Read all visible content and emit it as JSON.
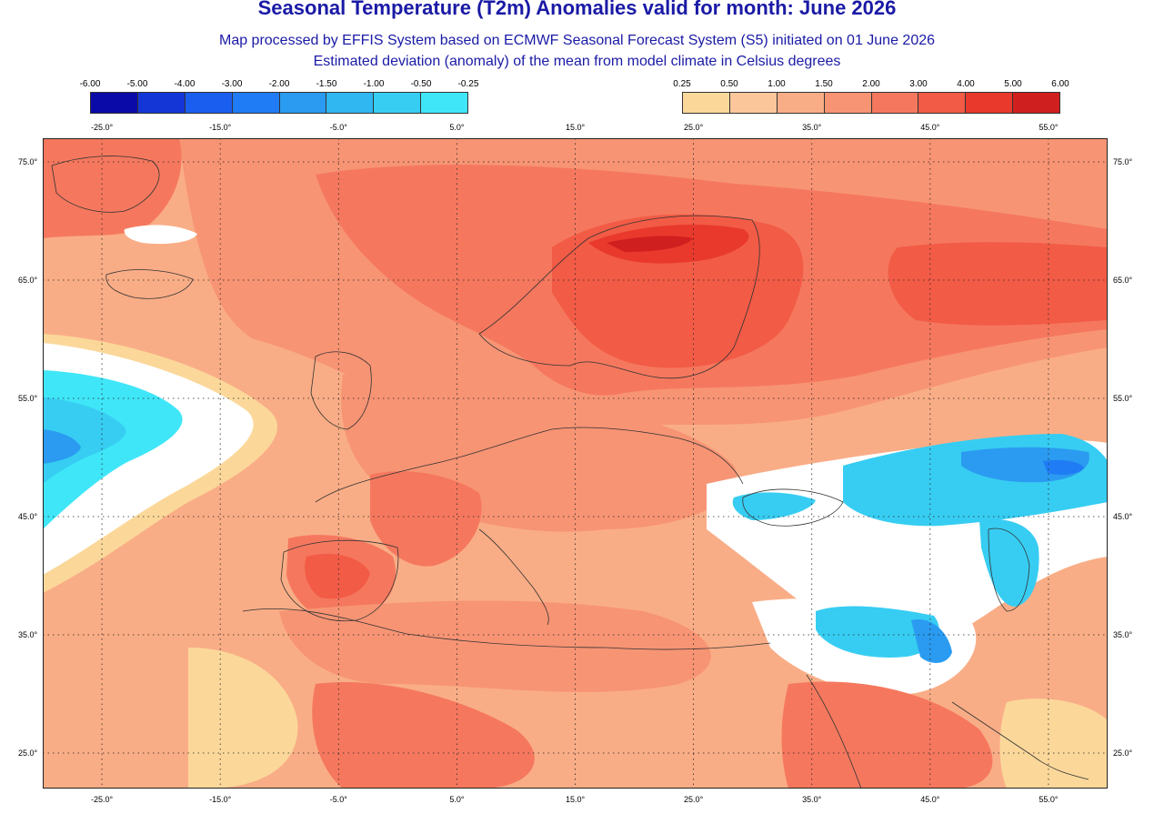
{
  "header": {
    "title": "Seasonal Temperature (T2m) Anomalies valid for month: June 2026",
    "subtitle1": "Map processed by EFFIS System based on ECMWF Seasonal Forecast System (S5) initiated on 01 June 2026",
    "subtitle2": "Estimated deviation (anomaly) of the mean from model climate in Celsius degrees"
  },
  "colorbar_negative": {
    "ticks": [
      "-6.00",
      "-5.00",
      "-4.00",
      "-3.00",
      "-2.00",
      "-1.50",
      "-1.00",
      "-0.50",
      "-0.25"
    ],
    "colors": [
      "#0a0aa8",
      "#1436d6",
      "#1a5ef0",
      "#1f7cf5",
      "#2a9bf0",
      "#30b6f0",
      "#37cdf2",
      "#3fe6f8"
    ]
  },
  "colorbar_positive": {
    "ticks": [
      "0.25",
      "0.50",
      "1.00",
      "1.50",
      "2.00",
      "3.00",
      "4.00",
      "5.00",
      "6.00"
    ],
    "colors": [
      "#fbd89a",
      "#fbc79a",
      "#f9ad86",
      "#f79474",
      "#f5785e",
      "#f25b46",
      "#e8392c",
      "#d01f1f"
    ]
  },
  "axes": {
    "longitude_labels": [
      "-25.0°",
      "-15.0°",
      "-5.0°",
      "5.0°",
      "15.0°",
      "25.0°",
      "35.0°",
      "45.0°",
      "55.0°"
    ],
    "latitude_labels": [
      "75.0°",
      "65.0°",
      "55.0°",
      "45.0°",
      "35.0°",
      "25.0°"
    ]
  },
  "map": {
    "lon_range": [
      -30,
      60
    ],
    "lat_range": [
      22,
      77
    ],
    "grid_lons": [
      -25,
      -15,
      -5,
      5,
      15,
      25,
      35,
      45,
      55
    ],
    "grid_lats": [
      75,
      65,
      55,
      45,
      35,
      25
    ]
  }
}
